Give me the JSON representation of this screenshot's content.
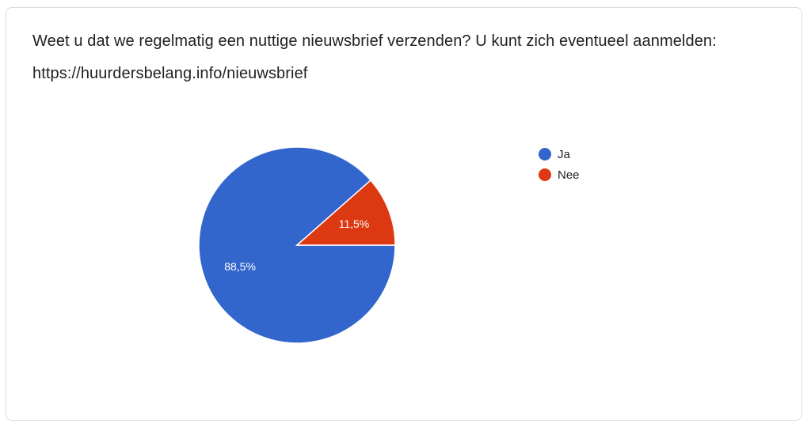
{
  "question": {
    "title": "Weet u dat we regelmatig een nuttige nieuwsbrief verzenden? U kunt zich eventueel aanmelden: https://huurdersbelang.info/nieuwsbrief"
  },
  "chart_data": {
    "type": "pie",
    "title": "",
    "legend_position": "right",
    "slices": [
      {
        "name": "Ja",
        "value": 88.5,
        "label": "88,5%",
        "color": "#3366cc"
      },
      {
        "name": "Nee",
        "value": 11.5,
        "label": "11,5%",
        "color": "#dc3912"
      }
    ]
  }
}
